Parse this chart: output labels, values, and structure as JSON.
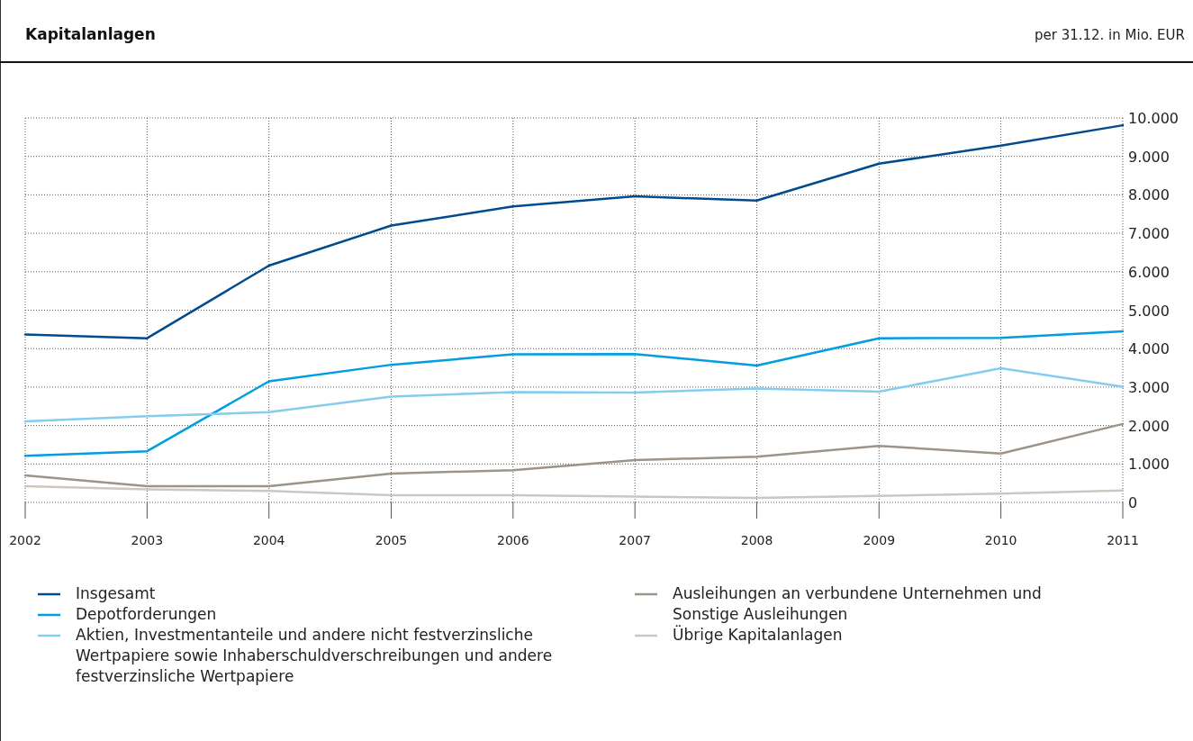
{
  "chart_data": {
    "type": "line",
    "title": "Kapitalanlagen",
    "subtitle": "per 31.12. in Mio. EUR",
    "x": [
      "2002",
      "2003",
      "2004",
      "2005",
      "2006",
      "2007",
      "2008",
      "2009",
      "2010",
      "2011"
    ],
    "xlim": [
      "2002",
      "2011"
    ],
    "xticks": [
      {
        "value": "2002",
        "label": "2002"
      },
      {
        "value": "2003",
        "label": "2003"
      },
      {
        "value": "2004",
        "label": "2004"
      },
      {
        "value": "2005",
        "label": "2005"
      },
      {
        "value": "2006",
        "label": "2006"
      },
      {
        "value": "2007",
        "label": "2007"
      },
      {
        "value": "2008",
        "label": "2008"
      },
      {
        "value": "2009",
        "label": "2009"
      },
      {
        "value": "2010",
        "label": "2010"
      },
      {
        "value": "2011",
        "label": "2011"
      }
    ],
    "ylim": [
      0,
      10000
    ],
    "yticks": [
      0,
      {
        "value": 1000,
        "label": "1.000"
      },
      {
        "value": 2000,
        "label": "2.000"
      },
      {
        "value": 3000,
        "label": "3.000"
      },
      {
        "value": 4000,
        "label": "4.000"
      },
      {
        "value": 5000,
        "label": "5.000"
      },
      {
        "value": 6000,
        "label": "6.000"
      },
      {
        "value": 7000,
        "label": "7.000"
      },
      {
        "value": 8000,
        "label": "8.000"
      },
      {
        "value": 9000,
        "label": "9.000"
      },
      {
        "value": 10000,
        "label": "10.000"
      }
    ],
    "grid": true,
    "legend": "bottom",
    "marker": "none",
    "line_style": "solid",
    "series": [
      {
        "name": "Insgesamt",
        "color": "#004b8d",
        "values": [
          4370,
          4270,
          6160,
          7200,
          7700,
          7960,
          7850,
          8810,
          9280,
          9810
        ]
      },
      {
        "name": "Depotforderungen",
        "color": "#009ee0",
        "values": [
          1210,
          1330,
          3150,
          3580,
          3850,
          3860,
          3560,
          4270,
          4280,
          4450
        ]
      },
      {
        "name": "Aktien, Investmentanteile und andere nicht festverzinsliche Wertpapiere sowie Inhaberschuldverschreibungen und andere festverzinsliche Wertpapiere",
        "color": "#85cdef",
        "values": [
          2110,
          2240,
          2350,
          2750,
          2870,
          2860,
          2960,
          2880,
          3490,
          3010
        ]
      },
      {
        "name": "Ausleihungen an verbundene Unternehmen und Sonstige Ausleihungen",
        "color": "#9d9388",
        "values": [
          700,
          420,
          420,
          750,
          840,
          1100,
          1190,
          1470,
          1270,
          2040
        ]
      },
      {
        "name": "Übrige Kapitalanlagen",
        "color": "#cbc6c0",
        "values": [
          420,
          340,
          300,
          190,
          190,
          150,
          120,
          170,
          230,
          310
        ]
      }
    ]
  }
}
